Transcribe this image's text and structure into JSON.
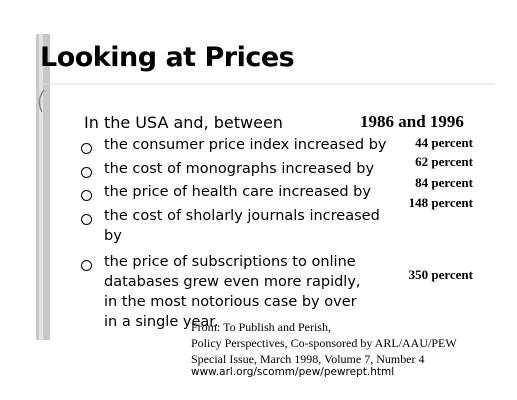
{
  "title": "Looking at Prices",
  "intro": "In the USA and, between",
  "period": "1986 and 1996",
  "bullets": [
    {
      "lines": [
        "the consumer price index increased by"
      ],
      "amount": "44 percent"
    },
    {
      "lines": [
        "the cost of monographs increased by"
      ],
      "amount": "62 percent"
    },
    {
      "lines": [
        "the price of health care increased by"
      ],
      "amount": "84 percent"
    },
    {
      "lines": [
        "the cost of sholarly journals increased",
        "by"
      ],
      "amount": "148 percent"
    },
    {
      "lines": [
        "the price of subscriptions to online",
        "databases grew even more rapidly,",
        "in the most notorious case by over",
        "in a single year."
      ],
      "amount": "350 percent"
    }
  ],
  "source": [
    "From: To Publish and Perish,",
    "Policy Perspectives, Co-sponsored by ARL/AAU/PEW",
    "Special Issue, March 1998, Volume 7, Number 4"
  ],
  "url": "www.arl.org/scomm/pew/pewrept.html"
}
